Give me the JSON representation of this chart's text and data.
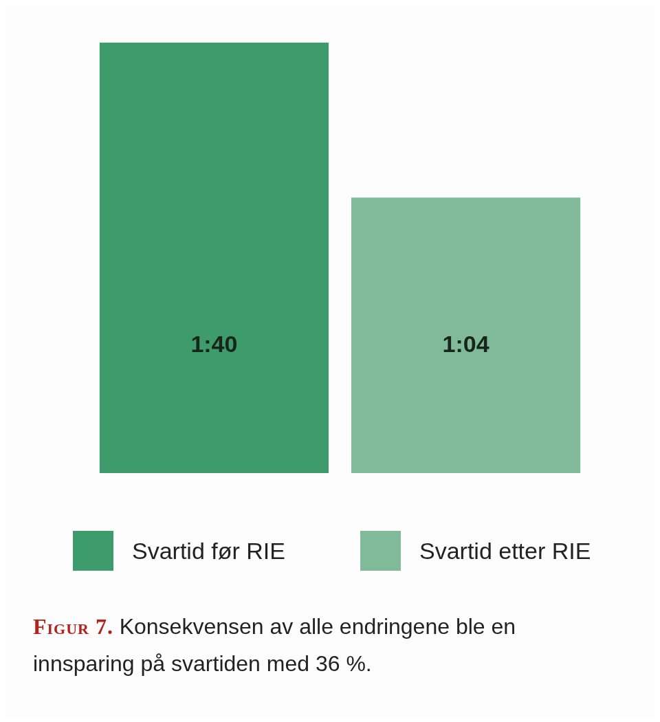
{
  "chart_data": {
    "type": "bar",
    "categories": [
      null
    ],
    "series": [
      {
        "name": "Svartid før RIE",
        "color": "#3d9b6c",
        "values": [
          100
        ],
        "value_labels": [
          "1:40"
        ]
      },
      {
        "name": "Svartid etter RIE",
        "color": "#80ba98",
        "values": [
          64
        ],
        "value_labels": [
          "1:04"
        ]
      }
    ],
    "legend": "bottom",
    "annotations": [
      "Figur 7.",
      "Konsekvensen av alle endringene ble en innsparing på svartiden med 36 %."
    ]
  }
}
